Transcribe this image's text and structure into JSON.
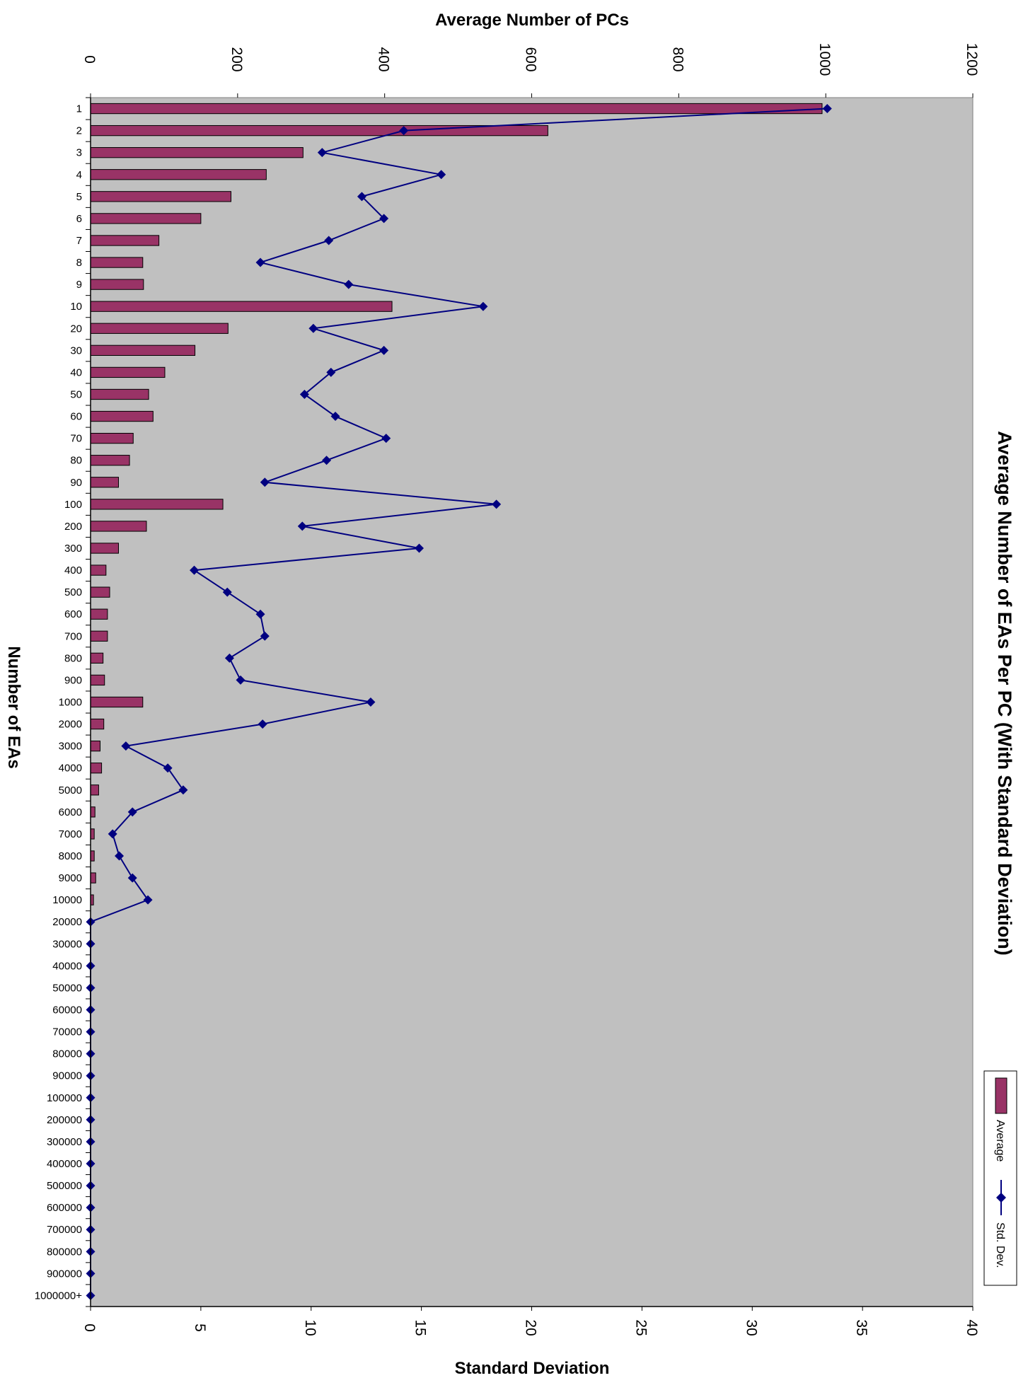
{
  "chart_data": {
    "type": "bar",
    "orientation": "horizontal",
    "title": "Average Number of EAs Per PC (With Standard Deviation)",
    "xlabel_top": "Average Number of PCs",
    "xlabel_bottom": "Standard Deviation",
    "ylabel": "Number of EAs",
    "xlim_top": [
      0,
      1200
    ],
    "xticks_top": [
      "0",
      "200",
      "400",
      "600",
      "800",
      "1000",
      "1200"
    ],
    "xlim_bottom": [
      0,
      40
    ],
    "xticks_bottom": [
      "0",
      "5",
      "10",
      "15",
      "20",
      "25",
      "30",
      "35",
      "40"
    ],
    "categories": [
      "1",
      "2",
      "3",
      "4",
      "5",
      "6",
      "7",
      "8",
      "9",
      "10",
      "20",
      "30",
      "40",
      "50",
      "60",
      "70",
      "80",
      "90",
      "100",
      "200",
      "300",
      "400",
      "500",
      "600",
      "700",
      "800",
      "900",
      "1000",
      "2000",
      "3000",
      "4000",
      "5000",
      "6000",
      "7000",
      "8000",
      "9000",
      "10000",
      "20000",
      "30000",
      "40000",
      "50000",
      "60000",
      "70000",
      "80000",
      "90000",
      "100000",
      "200000",
      "300000",
      "400000",
      "500000",
      "600000",
      "700000",
      "800000",
      "900000",
      "1000000+"
    ],
    "series": [
      {
        "name": "Average",
        "axis": "top",
        "color": "#993366",
        "values": [
          995,
          622,
          289,
          239,
          191,
          150,
          93,
          71,
          72,
          410,
          187,
          142,
          101,
          79,
          85,
          58,
          53,
          38,
          180,
          76,
          38,
          21,
          26,
          23,
          23,
          17,
          19,
          71,
          18,
          13,
          15,
          11,
          6,
          5,
          5,
          7,
          4,
          0,
          0,
          0,
          0,
          0,
          0,
          0,
          0,
          0,
          0,
          0,
          0,
          0,
          0,
          0,
          0,
          0,
          0
        ]
      },
      {
        "name": "Std. Dev.",
        "axis": "bottom",
        "color": "#000080",
        "values": [
          33.4,
          14.2,
          10.5,
          15.9,
          12.3,
          13.3,
          10.8,
          7.7,
          11.7,
          17.8,
          10.1,
          13.3,
          10.9,
          9.7,
          11.1,
          13.4,
          10.7,
          7.9,
          18.4,
          9.6,
          14.9,
          4.7,
          6.2,
          7.7,
          7.9,
          6.3,
          6.8,
          12.7,
          7.8,
          1.6,
          3.5,
          4.2,
          1.9,
          1.0,
          1.3,
          1.9,
          2.6,
          0,
          0,
          0,
          0,
          0,
          0,
          0,
          0,
          0,
          0,
          0,
          0,
          0,
          0,
          0,
          0,
          0,
          0
        ]
      }
    ],
    "legend": [
      "Average",
      "Std. Dev."
    ],
    "legend_position": "right",
    "plot_background": "#c0c0c0",
    "grid": false
  }
}
